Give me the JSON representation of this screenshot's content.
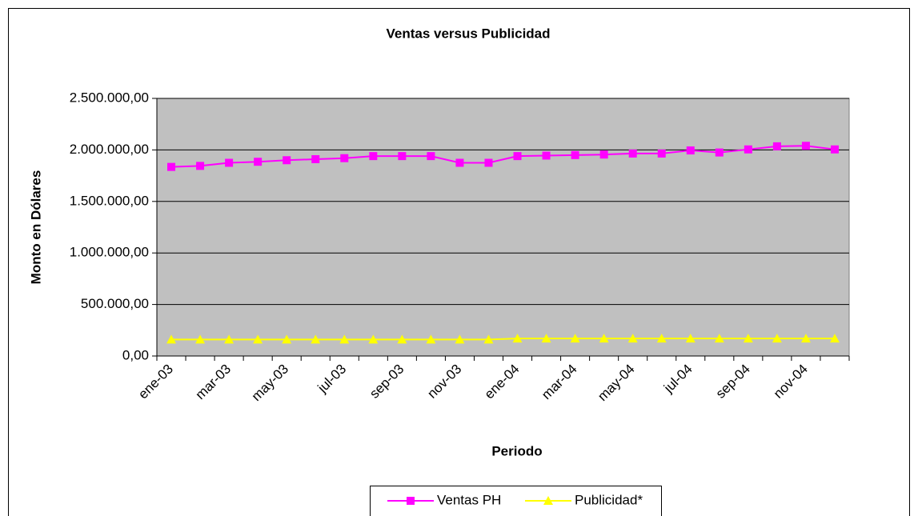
{
  "chart_data": {
    "type": "line",
    "title": "Ventas versus Publicidad",
    "xlabel": "Periodo",
    "ylabel": "Monto en Dólares",
    "categories": [
      "ene-03",
      null,
      "mar-03",
      null,
      "may-03",
      null,
      "jul-03",
      null,
      "sep-03",
      null,
      "nov-03",
      null,
      "ene-04",
      null,
      "mar-04",
      null,
      "may-04",
      null,
      "jul-04",
      null,
      "sep-04",
      null,
      "nov-04",
      null
    ],
    "series": [
      {
        "name": "Ventas PH",
        "color": "#ff00ff",
        "marker": "square",
        "values": [
          1835000,
          1845000,
          1875000,
          1885000,
          1900000,
          1910000,
          1920000,
          1940000,
          1940000,
          1940000,
          1875000,
          1875000,
          1940000,
          1945000,
          1950000,
          1955000,
          1965000,
          1965000,
          1995000,
          1975000,
          2005000,
          2035000,
          2040000,
          2005000
        ]
      },
      {
        "name": "Publicidad*",
        "color": "#ffff00",
        "marker": "triangle",
        "values": [
          160000,
          160000,
          160000,
          160000,
          160000,
          160000,
          160000,
          160000,
          160000,
          160000,
          160000,
          160000,
          170000,
          170000,
          170000,
          170000,
          170000,
          170000,
          170000,
          170000,
          170000,
          170000,
          170000,
          170000
        ]
      }
    ],
    "ylim": [
      0,
      2500000
    ],
    "yticks": [
      {
        "value": 0,
        "label": "0,00"
      },
      {
        "value": 500000,
        "label": "500.000,00"
      },
      {
        "value": 1000000,
        "label": "1.000.000,00"
      },
      {
        "value": 1500000,
        "label": "1.500.000,00"
      },
      {
        "value": 2000000,
        "label": "2.000.000,00"
      },
      {
        "value": 2500000,
        "label": "2.500.000,00"
      }
    ],
    "grid": true,
    "plot_background": "#c0c0c0",
    "legend": "bottom"
  }
}
